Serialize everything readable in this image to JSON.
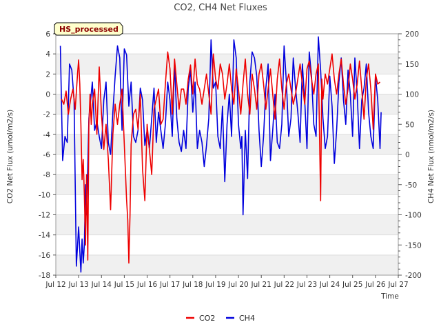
{
  "chart_data": {
    "type": "line",
    "title": "CO2, CH4 Net Fluxes",
    "badge": "HS_processed",
    "xlabel": "Time",
    "ylabel": "CO2 Net Flux (umol/m2/s)",
    "y2label": "CH4 Net Flux (nmol/m2/s)",
    "xlim": [
      12,
      27
    ],
    "ylim": [
      -18,
      6
    ],
    "y2lim": [
      -200,
      200
    ],
    "x_ticks": [
      12,
      13,
      14,
      15,
      16,
      17,
      18,
      19,
      20,
      21,
      22,
      23,
      24,
      25,
      26,
      27
    ],
    "x_tick_labels": [
      "Jul 12",
      "Jul 13",
      "Jul 14",
      "Jul 15",
      "Jul 16",
      "Jul 17",
      "Jul 18",
      "Jul 19",
      "Jul 20",
      "Jul 21",
      "Jul 22",
      "Jul 23",
      "Jul 24",
      "Jul 25",
      "Jul 26",
      "Jul 27"
    ],
    "y_ticks": [
      6,
      4,
      2,
      0,
      -2,
      -4,
      -6,
      -8,
      -10,
      -12,
      -14,
      -16,
      -18
    ],
    "y2_ticks": [
      200,
      150,
      100,
      50,
      0,
      -50,
      -100,
      -150,
      -200
    ],
    "legend_position": "bottom",
    "series": [
      {
        "name": "CO2",
        "color": "#ee0000",
        "axis": "left",
        "x": [
          12.25,
          12.35,
          12.45,
          12.55,
          12.65,
          12.75,
          12.85,
          12.95,
          13.0,
          13.05,
          13.1,
          13.15,
          13.2,
          13.25,
          13.3,
          13.35,
          13.4,
          13.45,
          13.5,
          13.55,
          13.6,
          13.7,
          13.8,
          13.9,
          14.0,
          14.1,
          14.2,
          14.3,
          14.4,
          14.5,
          14.6,
          14.7,
          14.8,
          14.9,
          15.0,
          15.1,
          15.15,
          15.2,
          15.25,
          15.3,
          15.4,
          15.5,
          15.6,
          15.7,
          15.8,
          15.9,
          16.0,
          16.1,
          16.2,
          16.3,
          16.4,
          16.5,
          16.6,
          16.7,
          16.8,
          16.9,
          17.0,
          17.1,
          17.2,
          17.3,
          17.4,
          17.5,
          17.6,
          17.7,
          17.8,
          17.9,
          18.0,
          18.1,
          18.2,
          18.3,
          18.4,
          18.5,
          18.6,
          18.7,
          18.8,
          18.9,
          19.0,
          19.1,
          19.2,
          19.3,
          19.4,
          19.5,
          19.6,
          19.7,
          19.8,
          19.9,
          20.0,
          20.1,
          20.2,
          20.3,
          20.4,
          20.5,
          20.6,
          20.7,
          20.8,
          20.9,
          21.0,
          21.1,
          21.2,
          21.3,
          21.4,
          21.5,
          21.6,
          21.7,
          21.8,
          21.9,
          22.0,
          22.1,
          22.2,
          22.3,
          22.4,
          22.5,
          22.6,
          22.7,
          22.8,
          22.9,
          23.0,
          23.1,
          23.2,
          23.3,
          23.4,
          23.5,
          23.6,
          23.65,
          23.7,
          23.8,
          23.9,
          24.0,
          24.1,
          24.2,
          24.3,
          24.4,
          24.5,
          24.6,
          24.7,
          24.8,
          24.9,
          25.0,
          25.1,
          25.2,
          25.3,
          25.4,
          25.5,
          25.6,
          25.7,
          25.8,
          25.9,
          26.0,
          26.1,
          26.2
        ],
        "values": [
          -0.5,
          -1.0,
          0.3,
          -2.0,
          -0.5,
          0.5,
          -1.5,
          2.0,
          3.4,
          1.0,
          -3.0,
          -8.5,
          -6.5,
          -10.0,
          -15.0,
          -8.0,
          -16.5,
          -3.0,
          0.0,
          -3.0,
          -1.0,
          0.5,
          -4.0,
          2.7,
          -2.0,
          -5.5,
          -3.0,
          -6.5,
          -11.5,
          -4.0,
          -1.0,
          -3.0,
          -1.0,
          0.5,
          -5.0,
          -10.5,
          -12.5,
          -16.8,
          -12.0,
          -5.0,
          -2.0,
          -1.5,
          -3.5,
          0.0,
          -7.5,
          -10.6,
          -3.0,
          -5.5,
          -8.0,
          -1.5,
          -0.5,
          0.5,
          -3.0,
          -2.5,
          1.0,
          4.2,
          2.5,
          -2.0,
          3.5,
          1.0,
          -1.5,
          0.5,
          0.5,
          -1.0,
          1.5,
          2.9,
          0.0,
          3.5,
          1.0,
          0.5,
          -1.0,
          0.5,
          2.0,
          0.0,
          -2.0,
          4.0,
          1.5,
          0.5,
          3.0,
          2.0,
          -0.5,
          1.0,
          3.0,
          0.5,
          -1.0,
          2.5,
          0.5,
          -2.0,
          1.0,
          3.5,
          0.0,
          -2.0,
          2.0,
          0.5,
          -1.5,
          2.0,
          3.0,
          1.0,
          -1.5,
          0.5,
          2.5,
          0.0,
          -2.5,
          1.5,
          3.5,
          0.5,
          -1.5,
          1.0,
          2.0,
          0.5,
          -1.0,
          0.0,
          1.5,
          3.0,
          1.0,
          -1.0,
          2.5,
          3.3,
          1.5,
          0.0,
          2.0,
          3.0,
          -10.6,
          1.5,
          -0.5,
          2.0,
          1.0,
          2.5,
          4.0,
          1.5,
          0.0,
          2.0,
          3.5,
          1.0,
          -1.0,
          0.5,
          3.0,
          1.5,
          -0.5,
          1.0,
          3.3,
          0.5,
          -2.5,
          1.5,
          3.0,
          0.5,
          -3.5,
          2.0,
          1.0,
          1.2
        ]
      },
      {
        "name": "CH4",
        "color": "#0000dd",
        "axis": "right",
        "x": [
          12.2,
          12.3,
          12.4,
          12.5,
          12.6,
          12.7,
          12.8,
          12.9,
          13.0,
          13.05,
          13.1,
          13.15,
          13.2,
          13.25,
          13.3,
          13.35,
          13.4,
          13.45,
          13.5,
          13.6,
          13.7,
          13.8,
          13.9,
          14.0,
          14.1,
          14.2,
          14.3,
          14.4,
          14.5,
          14.6,
          14.7,
          14.8,
          14.9,
          15.0,
          15.1,
          15.2,
          15.3,
          15.4,
          15.5,
          15.6,
          15.7,
          15.8,
          15.9,
          16.0,
          16.1,
          16.2,
          16.3,
          16.4,
          16.5,
          16.6,
          16.7,
          16.8,
          16.9,
          17.0,
          17.1,
          17.2,
          17.3,
          17.4,
          17.5,
          17.6,
          17.7,
          17.8,
          17.9,
          18.0,
          18.1,
          18.2,
          18.3,
          18.4,
          18.5,
          18.6,
          18.7,
          18.8,
          18.9,
          19.0,
          19.1,
          19.2,
          19.3,
          19.4,
          19.5,
          19.6,
          19.7,
          19.8,
          19.9,
          20.0,
          20.1,
          20.15,
          20.2,
          20.3,
          20.4,
          20.5,
          20.6,
          20.7,
          20.8,
          20.9,
          21.0,
          21.1,
          21.2,
          21.3,
          21.4,
          21.5,
          21.6,
          21.7,
          21.8,
          21.9,
          22.0,
          22.1,
          22.2,
          22.3,
          22.4,
          22.5,
          22.6,
          22.7,
          22.8,
          22.9,
          23.0,
          23.1,
          23.2,
          23.3,
          23.4,
          23.5,
          23.6,
          23.7,
          23.8,
          23.9,
          24.0,
          24.1,
          24.2,
          24.3,
          24.4,
          24.5,
          24.6,
          24.7,
          24.8,
          24.9,
          25.0,
          25.1,
          25.2,
          25.3,
          25.4,
          25.5,
          25.6,
          25.7,
          25.8,
          25.9,
          26.0,
          26.1,
          26.2,
          26.25
        ],
        "values": [
          180,
          -10,
          30,
          20,
          150,
          140,
          90,
          -185,
          -120,
          -160,
          -195,
          -140,
          -180,
          -150,
          -50,
          -100,
          -20,
          60,
          80,
          120,
          40,
          55,
          30,
          10,
          90,
          120,
          20,
          0,
          70,
          130,
          180,
          160,
          40,
          175,
          165,
          80,
          120,
          30,
          20,
          40,
          110,
          90,
          15,
          40,
          10,
          60,
          110,
          20,
          70,
          40,
          10,
          50,
          120,
          90,
          30,
          150,
          60,
          20,
          5,
          40,
          10,
          110,
          140,
          70,
          120,
          10,
          40,
          20,
          -20,
          15,
          60,
          190,
          110,
          120,
          30,
          10,
          80,
          -45,
          50,
          100,
          30,
          190,
          160,
          50,
          10,
          30,
          -100,
          40,
          -40,
          120,
          170,
          160,
          130,
          40,
          -20,
          30,
          110,
          150,
          -10,
          40,
          100,
          20,
          10,
          50,
          180,
          120,
          30,
          60,
          160,
          110,
          70,
          20,
          150,
          90,
          10,
          170,
          130,
          50,
          30,
          195,
          140,
          60,
          10,
          30,
          130,
          80,
          -15,
          40,
          120,
          160,
          90,
          50,
          140,
          100,
          30,
          160,
          100,
          10,
          90,
          110,
          150,
          70,
          30,
          10,
          130,
          90,
          10,
          70
        ]
      }
    ]
  }
}
